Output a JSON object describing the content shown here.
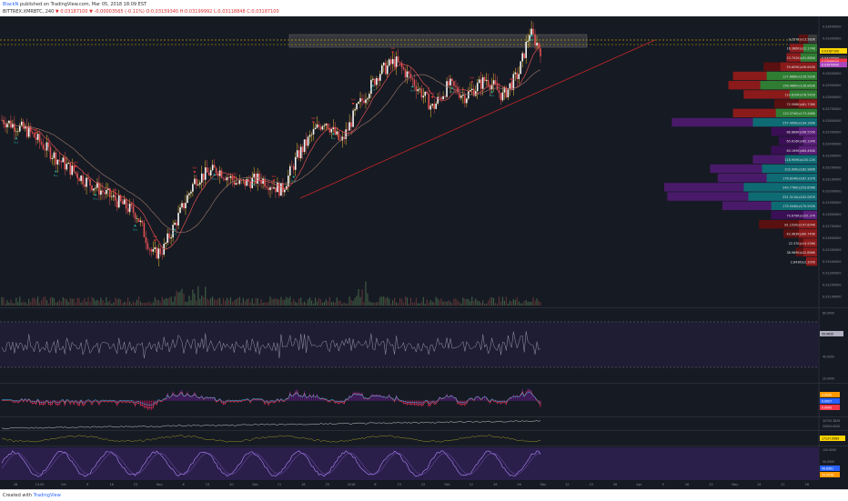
{
  "header": {
    "user": "BlackN",
    "published": "published on TradingView.com, Mar 05, 2018 18:09 EST",
    "symbol": "BITTREX:XMRBTC, 240",
    "ohlc": "▼ 0.03187100 ▼ -0.00003565 (-0.11%) O:0.03159340 H:0.03199992 L:0.03118848 C:0.03187100"
  },
  "footer": {
    "created_with": "Created with",
    "brand": "TradingView"
  },
  "chart_data": {
    "type": "candlestick",
    "price_axis": [
      "0.03400000",
      "0.03300000",
      "0.03200000",
      "0.03100000",
      "0.03000000",
      "0.02900000",
      "0.02800000",
      "0.02700000",
      "0.02600000",
      "0.02500000",
      "0.02400000",
      "0.02300000",
      "0.02200000",
      "0.02100000",
      "0.02000000",
      "0.01900000",
      "0.01800000",
      "0.01700000",
      "0.01600000",
      "0.01500000",
      "0.01400000",
      "0.01300000",
      "0.01200000",
      "0.01100000"
    ],
    "price_tags": [
      {
        "value": "0.03187100",
        "color": "#ffffff",
        "bg": "#ffd600",
        "text_color": "#000000"
      },
      {
        "value": "0.03125500",
        "color": "#ffffff",
        "bg": "#3a3a3a",
        "text_color": "#ffffff"
      },
      {
        "value": "0.03098000",
        "color": "#ffffff",
        "bg": "#f23645",
        "text_color": "#ffffff"
      },
      {
        "value": "0.03070000",
        "color": "#ffffff",
        "bg": "#ab47bc",
        "text_color": "#ffffff"
      }
    ],
    "volume_profile": [
      {
        "label": "9.257K(x13.583K",
        "buy": 0.12,
        "sell": 0.0,
        "color": "none"
      },
      {
        "label": "16.386K(x22.174K",
        "buy": 0.18,
        "sell": 0.05,
        "color": "green"
      },
      {
        "label": "23.702K(x31.685K",
        "buy": 0.2,
        "sell": 0.08,
        "color": "green"
      },
      {
        "label": "59.609K(x56.645K",
        "buy": 0.35,
        "sell": 0.3,
        "color": "red"
      },
      {
        "label": "127.868K(x126.583K",
        "buy": 0.55,
        "sell": 0.45,
        "color": "green"
      },
      {
        "label": "156.466K(x128.863K",
        "buy": 0.58,
        "sell": 0.52,
        "color": "green"
      },
      {
        "label": "110.810K(x78.542K",
        "buy": 0.48,
        "sell": 0.2,
        "color": "green"
      },
      {
        "label": "72.598K(x81.738K",
        "buy": 0.28,
        "sell": 0.1,
        "color": "red"
      },
      {
        "label": "120.374K(x173.488K",
        "buy": 0.55,
        "sell": 0.35,
        "color": "green"
      },
      {
        "label": "257.495K(x234.189K",
        "buy": 0.95,
        "sell": 0.6,
        "color": "teal"
      },
      {
        "label": "88.888K(x96.550K",
        "buy": 0.3,
        "sell": 0.1,
        "color": "purple"
      },
      {
        "label": "65.616K(x65.104K",
        "buy": 0.25,
        "sell": 0.05,
        "color": "purple"
      },
      {
        "label": "80.169K(x84.464K",
        "buy": 0.3,
        "sell": 0.1,
        "color": "purple"
      },
      {
        "label": "118.909K(x130.22K",
        "buy": 0.42,
        "sell": 0.25,
        "color": "teal"
      },
      {
        "label": "203.99K(x182.980K",
        "buy": 0.7,
        "sell": 0.5,
        "color": "teal"
      },
      {
        "label": "176.624K(x187.337K",
        "buy": 0.65,
        "sell": 0.45,
        "color": "teal"
      },
      {
        "label": "240.778K(x253.856K",
        "buy": 1.0,
        "sell": 0.7,
        "color": "teal"
      },
      {
        "label": "251.311K(x242.067K",
        "buy": 0.98,
        "sell": 0.65,
        "color": "teal"
      },
      {
        "label": "175.544K(x170.592K",
        "buy": 0.62,
        "sell": 0.4,
        "color": "teal"
      },
      {
        "label": "79.676K(x105.37K",
        "buy": 0.3,
        "sell": 0.05,
        "color": "purple"
      },
      {
        "label": "81.152K(x147.854K",
        "buy": 0.38,
        "sell": 0.1,
        "color": "red"
      },
      {
        "label": "42.983K(x60.749K",
        "buy": 0.22,
        "sell": 0.1,
        "color": "red"
      },
      {
        "label": "22.37K(x14.558K",
        "buy": 0.12,
        "sell": 0.05,
        "color": "red"
      },
      {
        "label": "38.989K(x22.886K",
        "buy": 0.14,
        "sell": 0.05,
        "color": "red"
      },
      {
        "label": "2.843K(x2.395K",
        "buy": 0.04,
        "sell": 0.02,
        "color": "red"
      }
    ],
    "x_axis": [
      "28",
      "13:00",
      "Oct",
      "9",
      "16",
      "23",
      "Nov",
      "6",
      "13",
      "20",
      "Dec",
      "11",
      "18",
      "25",
      "2018",
      "8",
      "15",
      "22",
      "Feb",
      "12",
      "19",
      "26",
      "Mar",
      "12",
      "19",
      "26",
      "Apr",
      "9",
      "16",
      "23",
      "May",
      "14",
      "21",
      "28"
    ],
    "indicators": [
      {
        "name": "rsi",
        "ticks": [
          "80.0000",
          "60.0000",
          "40.0000",
          "20.0000"
        ],
        "tag": "59.9635",
        "tag_color": "#b0b0c0"
      },
      {
        "name": "macd",
        "tags": [
          {
            "v": "0.0040",
            "c": "#ff9800"
          },
          {
            "v": "0.0007",
            "c": "#2962ff"
          },
          {
            "v": "0.0000",
            "c": "#f23645"
          }
        ]
      },
      {
        "name": "obv",
        "ticks": [
          "30755.3829",
          "20000.0000"
        ],
        "tag": "26755.3829",
        "tag_color": "#ffffff"
      },
      {
        "name": "cmf",
        "tag": "17127.9589",
        "tag_color": "#ffd600"
      },
      {
        "name": "stoch",
        "ticks": [
          "100.0000",
          "50.0000",
          "0.0000"
        ],
        "tags": [
          {
            "v": "49.8981",
            "c": "#2962ff"
          },
          {
            "v": "34.5978",
            "c": "#ff9800"
          }
        ]
      }
    ]
  }
}
